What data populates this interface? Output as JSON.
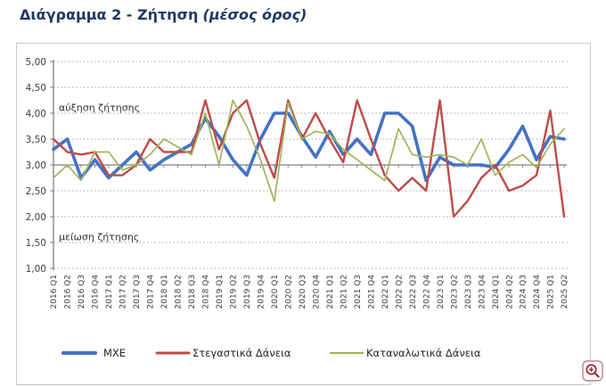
{
  "title": {
    "main": "Διάγραμμα 2 - Ζήτηση",
    "subtitle": "(μέσος όρος)"
  },
  "chart_data": {
    "type": "line",
    "title": "Διάγραμμα 2 - Ζήτηση (μέσος όρος)",
    "xlabel": "",
    "ylabel": "",
    "ylim": [
      1.0,
      5.0
    ],
    "grid": "dotted horizontal",
    "axis_cross_value": 3.0,
    "legend_position": "bottom",
    "y_ticks": [
      "5,00",
      "4,50",
      "4,00",
      "3,50",
      "3,00",
      "2,50",
      "2,00",
      "1,50",
      "1,00"
    ],
    "y_tick_values": [
      5.0,
      4.5,
      4.0,
      3.5,
      3.0,
      2.5,
      2.0,
      1.5,
      1.0
    ],
    "annotations": [
      {
        "text": "αύξηση ζήτησης",
        "value": 4.0
      },
      {
        "text": "μείωση ζήτησης",
        "value": 1.5
      }
    ],
    "categories": [
      "2016 Q1",
      "2016 Q2",
      "2016 Q3",
      "2016 Q4",
      "2017 Q1",
      "2017 Q2",
      "2017 Q3",
      "2017 Q4",
      "2018 Q1",
      "2018 Q2",
      "2018 Q3",
      "2018 Q4",
      "2019 Q1",
      "2019 Q2",
      "2019 Q3",
      "2019 Q4",
      "2020 Q1",
      "2020 Q2",
      "2020 Q3",
      "2020 Q4",
      "2021 Q1",
      "2021 Q2",
      "2021 Q3",
      "2021 Q4",
      "2022 Q1",
      "2022 Q2",
      "2022 Q3",
      "2022 Q4",
      "2023 Q1",
      "2023 Q2",
      "2023 Q3",
      "2023 Q4",
      "2024 Q1",
      "2024 Q2",
      "2024 Q3",
      "2024 Q4",
      "2025 Q1",
      "2025 Q2"
    ],
    "series": [
      {
        "name": "ΜΧΕ",
        "color": "#4472C4",
        "width": 3.6,
        "values": [
          3.3,
          3.5,
          2.75,
          3.1,
          2.75,
          3.0,
          3.25,
          2.9,
          3.1,
          3.25,
          3.4,
          3.9,
          3.55,
          3.1,
          2.8,
          3.5,
          4.0,
          4.0,
          3.55,
          3.15,
          3.65,
          3.2,
          3.5,
          3.2,
          4.0,
          4.0,
          3.75,
          2.7,
          3.15,
          3.0,
          3.0,
          3.0,
          2.95,
          3.3,
          3.75,
          3.1,
          3.55,
          3.5
        ]
      },
      {
        "name": "Στεγαστικά Δάνεια",
        "color": "#BE4B48",
        "width": 2.4,
        "values": [
          3.5,
          3.25,
          3.2,
          3.25,
          2.8,
          2.8,
          3.0,
          3.5,
          3.25,
          3.25,
          3.25,
          4.25,
          3.3,
          4.0,
          4.25,
          3.4,
          2.75,
          4.25,
          3.5,
          4.0,
          3.5,
          3.05,
          4.25,
          3.5,
          2.8,
          2.5,
          2.75,
          2.5,
          4.25,
          2.0,
          2.3,
          2.75,
          3.0,
          2.5,
          2.6,
          2.8,
          4.05,
          2.0
        ]
      },
      {
        "name": "Καταναλωτικά Δάνεια",
        "color": "#9FB45A",
        "width": 1.7,
        "values": [
          2.75,
          3.0,
          2.7,
          3.25,
          3.25,
          2.9,
          3.0,
          3.2,
          3.5,
          3.35,
          3.2,
          4.0,
          3.0,
          4.25,
          3.75,
          3.1,
          2.3,
          4.2,
          3.5,
          3.65,
          3.6,
          3.3,
          3.1,
          2.9,
          2.7,
          3.7,
          3.2,
          3.15,
          3.2,
          3.15,
          3.0,
          3.5,
          2.8,
          3.05,
          3.2,
          2.95,
          3.4,
          3.7
        ]
      }
    ]
  },
  "zoom_button": {
    "label": "zoom-magnifier"
  },
  "colors": {
    "title": "#1F3864",
    "axis_line": "#808080",
    "gridline": "#A6A6A6",
    "axis_text": "#404040",
    "annotation_text": "#333333"
  }
}
